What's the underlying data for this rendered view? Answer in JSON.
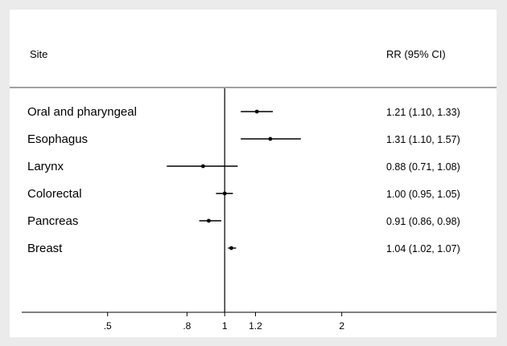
{
  "chart_data": {
    "type": "forest",
    "header": {
      "site": "Site",
      "rr": "RR (95% CI)"
    },
    "xscale": "log",
    "xlim": [
      0.28,
      5.0
    ],
    "reference_line": 1,
    "xticks": [
      {
        "value": 0.5,
        "label": ".5"
      },
      {
        "value": 0.8,
        "label": ".8"
      },
      {
        "value": 1.0,
        "label": "1"
      },
      {
        "value": 1.2,
        "label": "1.2"
      },
      {
        "value": 2.0,
        "label": "2"
      }
    ],
    "rows": [
      {
        "site": "Oral and pharyngeal",
        "rr": 1.21,
        "lo": 1.1,
        "hi": 1.33,
        "label": "1.21 (1.10, 1.33)"
      },
      {
        "site": "Esophagus",
        "rr": 1.31,
        "lo": 1.1,
        "hi": 1.57,
        "label": "1.31 (1.10, 1.57)"
      },
      {
        "site": "Larynx",
        "rr": 0.88,
        "lo": 0.71,
        "hi": 1.08,
        "label": "0.88 (0.71, 1.08)"
      },
      {
        "site": "Colorectal",
        "rr": 1.0,
        "lo": 0.95,
        "hi": 1.05,
        "label": "1.00 (0.95, 1.05)"
      },
      {
        "site": "Pancreas",
        "rr": 0.91,
        "lo": 0.86,
        "hi": 0.98,
        "label": "0.91 (0.86, 0.98)"
      },
      {
        "site": "Breast",
        "rr": 1.04,
        "lo": 1.02,
        "hi": 1.07,
        "label": "1.04 (1.02, 1.07)"
      }
    ],
    "colors": {
      "background": "#ebebeb",
      "panel": "#ffffff",
      "ink": "#000000"
    }
  }
}
